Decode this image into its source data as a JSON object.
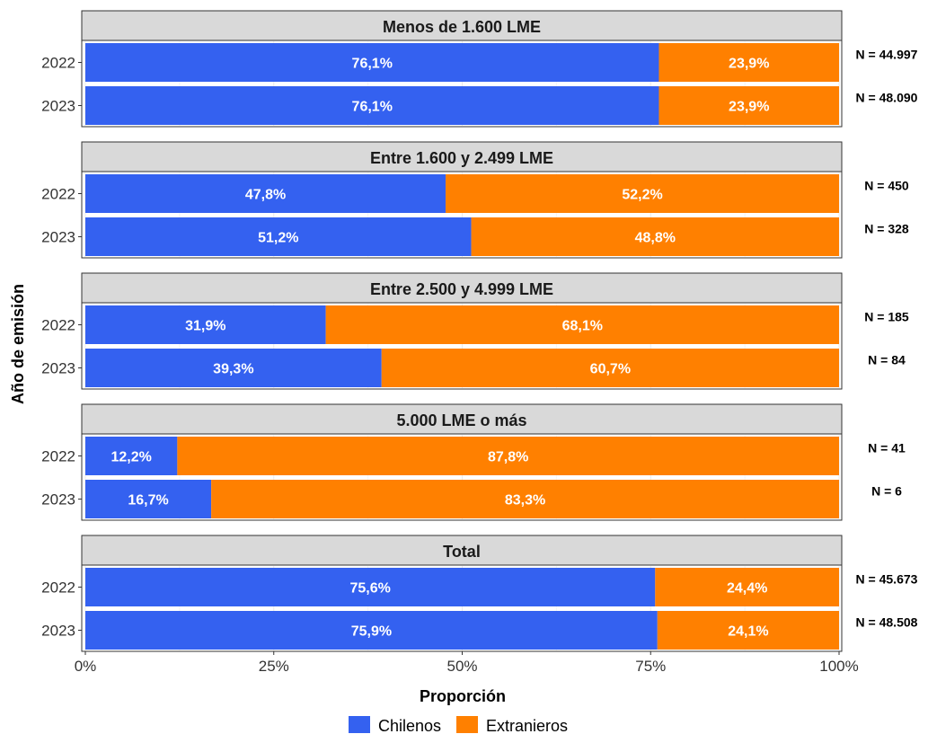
{
  "chart_data": {
    "type": "bar",
    "orientation": "horizontal",
    "stacked": true,
    "xlabel": "Proporción",
    "ylabel": "Año de emisión",
    "xlim": [
      0,
      100
    ],
    "x_ticks": [
      "0%",
      "25%",
      "50%",
      "75%",
      "100%"
    ],
    "x_tick_values": [
      0,
      25,
      50,
      75,
      100
    ],
    "grid": true,
    "legend_position": "bottom",
    "legend": [
      {
        "name": "Chilenos",
        "color": "#3461F0"
      },
      {
        "name": "Extranieros",
        "color": "#FF8000"
      }
    ],
    "panels": [
      {
        "title": "Menos de 1.600 LME",
        "rows": [
          {
            "year": "2022",
            "chilenos": 76.1,
            "extranjeros": 23.9,
            "chilenos_label": "76,1%",
            "extranjeros_label": "23,9%",
            "n_label": "N = 44.997"
          },
          {
            "year": "2023",
            "chilenos": 76.1,
            "extranjeros": 23.9,
            "chilenos_label": "76,1%",
            "extranjeros_label": "23,9%",
            "n_label": "N = 48.090"
          }
        ]
      },
      {
        "title": "Entre 1.600 y 2.499 LME",
        "rows": [
          {
            "year": "2022",
            "chilenos": 47.8,
            "extranjeros": 52.2,
            "chilenos_label": "47,8%",
            "extranjeros_label": "52,2%",
            "n_label": "N = 450"
          },
          {
            "year": "2023",
            "chilenos": 51.2,
            "extranjeros": 48.8,
            "chilenos_label": "51,2%",
            "extranjeros_label": "48,8%",
            "n_label": "N = 328"
          }
        ]
      },
      {
        "title": "Entre 2.500 y 4.999 LME",
        "rows": [
          {
            "year": "2022",
            "chilenos": 31.9,
            "extranjeros": 68.1,
            "chilenos_label": "31,9%",
            "extranjeros_label": "68,1%",
            "n_label": "N = 185"
          },
          {
            "year": "2023",
            "chilenos": 39.3,
            "extranjeros": 60.7,
            "chilenos_label": "39,3%",
            "extranjeros_label": "60,7%",
            "n_label": "N = 84"
          }
        ]
      },
      {
        "title": "5.000 LME o más",
        "rows": [
          {
            "year": "2022",
            "chilenos": 12.2,
            "extranjeros": 87.8,
            "chilenos_label": "12,2%",
            "extranjeros_label": "87,8%",
            "n_label": "N = 41"
          },
          {
            "year": "2023",
            "chilenos": 16.7,
            "extranjeros": 83.3,
            "chilenos_label": "16,7%",
            "extranjeros_label": "83,3%",
            "n_label": "N = 6"
          }
        ]
      },
      {
        "title": "Total",
        "rows": [
          {
            "year": "2022",
            "chilenos": 75.6,
            "extranjeros": 24.4,
            "chilenos_label": "75,6%",
            "extranjeros_label": "24,4%",
            "n_label": "N = 45.673"
          },
          {
            "year": "2023",
            "chilenos": 75.9,
            "extranjeros": 24.1,
            "chilenos_label": "75,9%",
            "extranjeros_label": "24,1%",
            "n_label": "N = 48.508"
          }
        ]
      }
    ]
  }
}
